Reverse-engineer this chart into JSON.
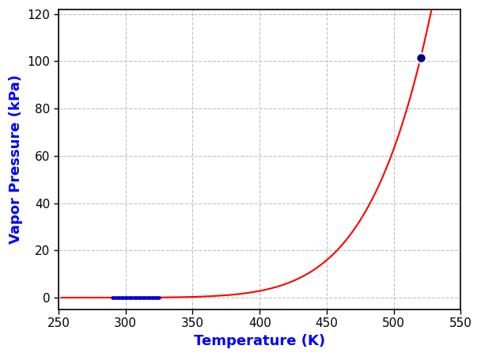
{
  "title": "",
  "xlabel": "Temperature (K)",
  "ylabel": "Vapor Pressure (kPa)",
  "xlabel_color": "#0000FF",
  "ylabel_color": "#0000FF",
  "tick_label_color": "#000000",
  "xlim": [
    250,
    550
  ],
  "ylim": [
    -5,
    122
  ],
  "xticks": [
    250,
    300,
    350,
    400,
    450,
    500,
    550
  ],
  "yticks": [
    0,
    20,
    40,
    60,
    80,
    100,
    120
  ],
  "grid_color": "#c0c0c0",
  "grid_linestyle": "--",
  "curve_color": "#FF0000",
  "curve_linewidth": 1.5,
  "scatter_color": "#0000CC",
  "scatter_x": [
    290,
    291,
    292,
    293,
    294,
    295,
    296,
    297,
    298,
    299,
    300,
    301,
    302,
    303,
    304,
    305,
    306,
    307,
    308,
    309,
    310,
    311,
    312,
    313,
    314,
    315,
    316,
    317,
    318,
    319,
    320,
    321,
    322,
    323,
    324,
    325
  ],
  "scatter_y": [
    0.01,
    0.01,
    0.01,
    0.02,
    0.02,
    0.02,
    0.03,
    0.03,
    0.03,
    0.04,
    0.04,
    0.04,
    0.05,
    0.05,
    0.05,
    0.06,
    0.06,
    0.06,
    0.07,
    0.07,
    0.08,
    0.08,
    0.09,
    0.09,
    0.1,
    0.1,
    0.11,
    0.11,
    0.12,
    0.13,
    0.13,
    0.14,
    0.15,
    0.15,
    0.16,
    0.16
  ],
  "boiling_point_x": 520,
  "boiling_point_y": 101.325,
  "boiling_color": "#000080",
  "dHvap_R": 6200.0,
  "T0": 520,
  "P0": 101.325,
  "T_curve_start": 252,
  "T_curve_end": 534,
  "bg_color": "#FFFFFF",
  "fig_bg_color": "#FFFFFF",
  "xlabel_fontsize": 13,
  "ylabel_fontsize": 13,
  "tick_fontsize": 11
}
